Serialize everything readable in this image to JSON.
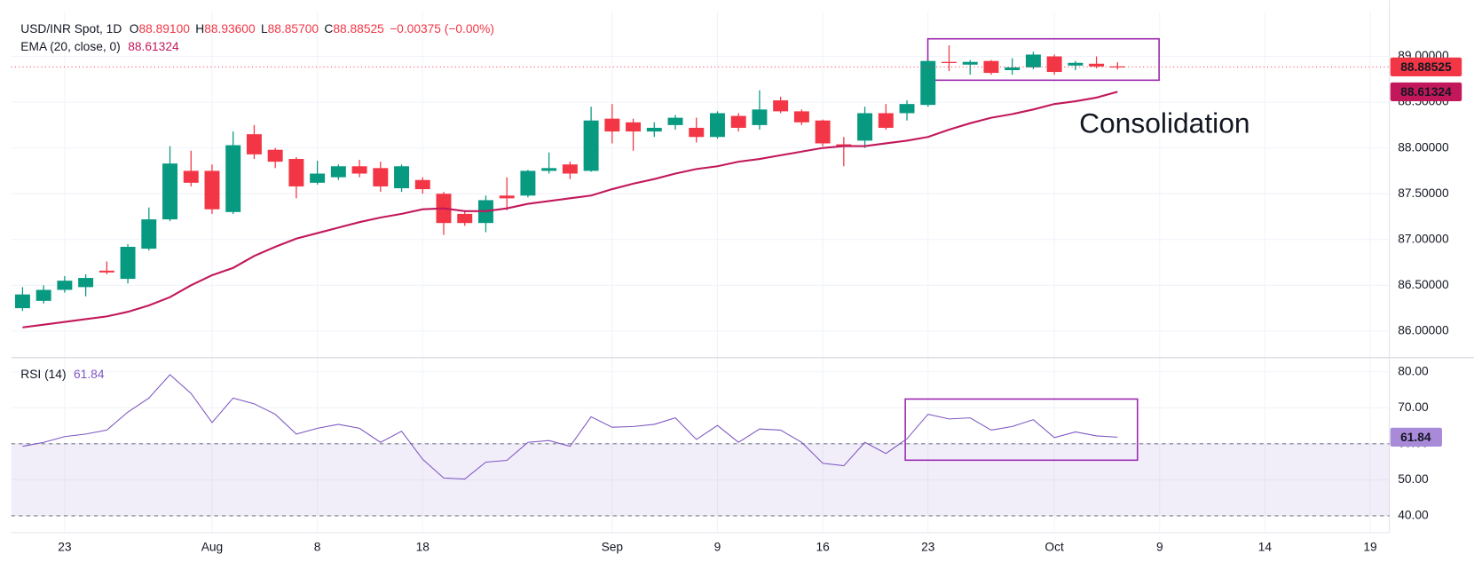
{
  "chart_data": [
    {
      "type": "candlestick",
      "title": "USD/INR Spot, 1D",
      "legend": [
        {
          "key": "O",
          "value": "88.89100"
        },
        {
          "key": "H",
          "value": "88.93600"
        },
        {
          "key": "L",
          "value": "88.85700"
        },
        {
          "key": "C",
          "value": "88.88525"
        }
      ],
      "change": "−0.00375 (−0.00%)",
      "last_label": "88.88525",
      "annotation": "Consolidation",
      "up_color": "#089981",
      "down_color": "#f23645",
      "categories": [
        null,
        null,
        "23",
        null,
        null,
        null,
        null,
        null,
        null,
        "Aug",
        null,
        null,
        null,
        null,
        "8",
        null,
        null,
        null,
        null,
        "18",
        null,
        null,
        null,
        null,
        null,
        null,
        null,
        null,
        "Sep",
        null,
        null,
        null,
        null,
        "9",
        null,
        null,
        null,
        null,
        "16",
        null,
        null,
        null,
        null,
        "23",
        null,
        null,
        null,
        null,
        null,
        "Oct",
        null,
        null,
        null,
        null,
        "9",
        null,
        null,
        null,
        null,
        "14",
        null,
        null,
        null,
        null,
        "19"
      ],
      "open": [
        86.25,
        86.33,
        86.45,
        86.48,
        86.66,
        86.57,
        86.9,
        87.22,
        87.75,
        87.75,
        87.3,
        88.15,
        87.98,
        87.88,
        87.62,
        87.68,
        87.8,
        87.78,
        87.56,
        87.65,
        87.5,
        87.28,
        87.18,
        87.48,
        87.48,
        87.75,
        87.82,
        87.75,
        88.32,
        88.28,
        88.18,
        88.25,
        88.22,
        88.12,
        88.35,
        88.25,
        88.52,
        88.4,
        88.3,
        88.04,
        88.08,
        88.38,
        88.38,
        88.47,
        88.94,
        88.91,
        88.95,
        88.85,
        88.88,
        89.0,
        88.9,
        88.92,
        88.891,
        null,
        null,
        null,
        null,
        null,
        null,
        null,
        null,
        null,
        null,
        null,
        null
      ],
      "high": [
        86.48,
        86.5,
        86.6,
        86.62,
        86.76,
        86.95,
        87.35,
        88.02,
        87.97,
        87.82,
        88.18,
        88.25,
        88.0,
        87.9,
        87.86,
        87.82,
        87.87,
        87.85,
        87.82,
        87.68,
        87.52,
        87.32,
        87.48,
        87.68,
        87.76,
        87.95,
        87.85,
        88.45,
        88.48,
        88.32,
        88.28,
        88.36,
        88.33,
        88.4,
        88.38,
        88.63,
        88.56,
        88.42,
        88.31,
        88.12,
        88.45,
        88.48,
        88.52,
        88.96,
        89.12,
        88.96,
        88.96,
        88.98,
        89.05,
        89.02,
        88.95,
        89.0,
        88.936,
        null,
        null,
        null,
        null,
        null,
        null,
        null,
        null,
        null,
        null,
        null,
        null
      ],
      "low": [
        86.22,
        86.3,
        86.42,
        86.38,
        86.62,
        86.52,
        86.88,
        87.2,
        87.58,
        87.28,
        87.28,
        87.88,
        87.78,
        87.45,
        87.6,
        87.65,
        87.68,
        87.52,
        87.52,
        87.5,
        87.05,
        87.15,
        87.08,
        87.32,
        87.46,
        87.72,
        87.66,
        87.74,
        88.05,
        87.97,
        88.12,
        88.2,
        88.06,
        88.1,
        88.18,
        88.2,
        88.38,
        88.25,
        88.02,
        87.8,
        88.0,
        88.2,
        88.3,
        88.45,
        88.84,
        88.8,
        88.8,
        88.8,
        88.86,
        88.8,
        88.85,
        88.87,
        88.857,
        null,
        null,
        null,
        null,
        null,
        null,
        null,
        null,
        null,
        null,
        null,
        null
      ],
      "close": [
        86.4,
        86.45,
        86.55,
        86.58,
        86.64,
        86.92,
        87.22,
        87.83,
        87.62,
        87.33,
        88.03,
        87.93,
        87.85,
        87.58,
        87.72,
        87.8,
        87.72,
        87.58,
        87.8,
        87.55,
        87.18,
        87.18,
        87.43,
        87.45,
        87.75,
        87.78,
        87.72,
        88.3,
        88.18,
        88.18,
        88.22,
        88.33,
        88.12,
        88.38,
        88.22,
        88.42,
        88.4,
        88.28,
        88.05,
        88.02,
        88.38,
        88.22,
        88.48,
        88.95,
        88.93,
        88.94,
        88.82,
        88.88,
        89.02,
        88.83,
        88.93,
        88.89,
        88.88525,
        null,
        null,
        null,
        null,
        null,
        null,
        null,
        null,
        null,
        null,
        null,
        null
      ],
      "series": [
        {
          "name": "EMA (20, close, 0)",
          "color": "#c2185b",
          "last_label": "88.61324",
          "values": [
            86.04,
            86.07,
            86.1,
            86.13,
            86.16,
            86.21,
            86.28,
            86.37,
            86.5,
            86.61,
            86.69,
            86.82,
            86.92,
            87.01,
            87.07,
            87.13,
            87.19,
            87.24,
            87.28,
            87.33,
            87.34,
            87.31,
            87.31,
            87.34,
            87.39,
            87.42,
            87.45,
            87.48,
            87.55,
            87.61,
            87.66,
            87.72,
            87.77,
            87.8,
            87.85,
            87.88,
            87.92,
            87.96,
            88.0,
            88.02,
            88.02,
            88.05,
            88.08,
            88.12,
            88.2,
            88.27,
            88.33,
            88.37,
            88.42,
            88.48,
            88.51,
            88.55,
            88.61324,
            null,
            null,
            null,
            null,
            null,
            null,
            null,
            null,
            null,
            null,
            null,
            null
          ]
        }
      ],
      "ylim": [
        85.73,
        89.49
      ],
      "yticks": [
        {
          "value": 86,
          "label": "86.00000"
        },
        {
          "value": 86.5,
          "label": "86.50000"
        },
        {
          "value": 87,
          "label": "87.00000"
        },
        {
          "value": 87.5,
          "label": "87.50000"
        },
        {
          "value": 88,
          "label": "88.00000"
        },
        {
          "value": 88.5,
          "label": "88.50000"
        },
        {
          "value": 89,
          "label": "89.00000"
        }
      ],
      "grid": true
    },
    {
      "type": "line",
      "series": [
        {
          "name": "RSI (14)",
          "color": "#7e57c2",
          "last_label": "61.84",
          "values": [
            59.3,
            60.4,
            62.0,
            62.7,
            63.8,
            68.8,
            72.7,
            79.2,
            74.0,
            65.9,
            72.7,
            71.1,
            68.2,
            62.7,
            64.3,
            65.4,
            64.3,
            60.4,
            63.5,
            55.7,
            50.5,
            50.2,
            54.9,
            55.4,
            60.4,
            60.9,
            59.3,
            67.5,
            64.6,
            64.8,
            65.4,
            67.2,
            61.2,
            65.1,
            60.4,
            64.1,
            63.8,
            60.4,
            54.6,
            53.9,
            60.4,
            57.3,
            61.4,
            68.2,
            66.9,
            67.2,
            63.8,
            64.8,
            66.7,
            61.7,
            63.3,
            62.2,
            61.84,
            null,
            null,
            null,
            null,
            null,
            null,
            null,
            null,
            null,
            null,
            null,
            null
          ]
        }
      ],
      "band": [
        40,
        60
      ],
      "ylim": [
        36.9,
        83.4
      ],
      "yticks": [
        {
          "value": 40,
          "label": "40.00"
        },
        {
          "value": 50,
          "label": "50.00"
        },
        {
          "value": 60,
          "label": "60.00"
        },
        {
          "value": 70,
          "label": "70.00"
        },
        {
          "value": 80,
          "label": "80.00"
        }
      ],
      "grid": true
    }
  ]
}
